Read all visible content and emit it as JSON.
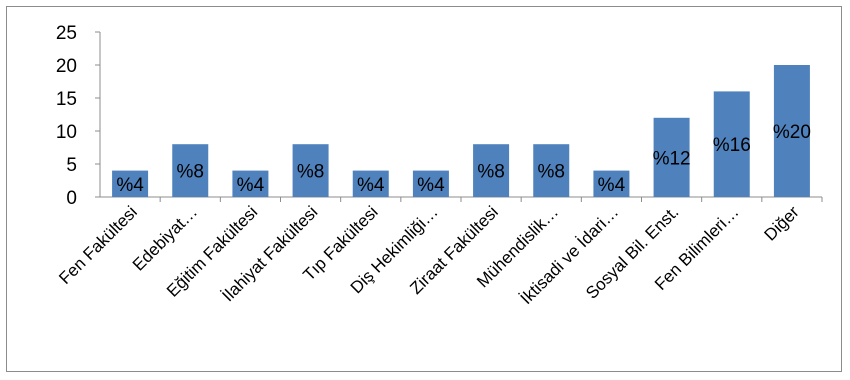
{
  "chart_data": {
    "type": "bar",
    "title": "",
    "xlabel": "",
    "ylabel": "",
    "ylim": [
      0,
      25
    ],
    "yticks": [
      0,
      5,
      10,
      15,
      20,
      25
    ],
    "grid": false,
    "legend": "none",
    "bar_color": "#4f81bd",
    "categories": [
      "Fen Fakültesi",
      "Edebiyat…",
      "Eğitim Fakültesi",
      "İlahiyat Fakültesi",
      "Tıp Fakültesi",
      "Diş Hekimliği…",
      "Ziraat Fakültesi",
      "Mühendislik…",
      "İktisadi ve İdari…",
      "Sosyal Bil. Enst.",
      "Fen Bilimleri…",
      "Diğer"
    ],
    "values": [
      4,
      8,
      4,
      8,
      4,
      4,
      8,
      8,
      4,
      12,
      16,
      20
    ],
    "data_labels": [
      "%4",
      "%8",
      "%4",
      "%8",
      "%4",
      "%4",
      "%8",
      "%8",
      "%4",
      "%12",
      "%16",
      "%20"
    ]
  }
}
